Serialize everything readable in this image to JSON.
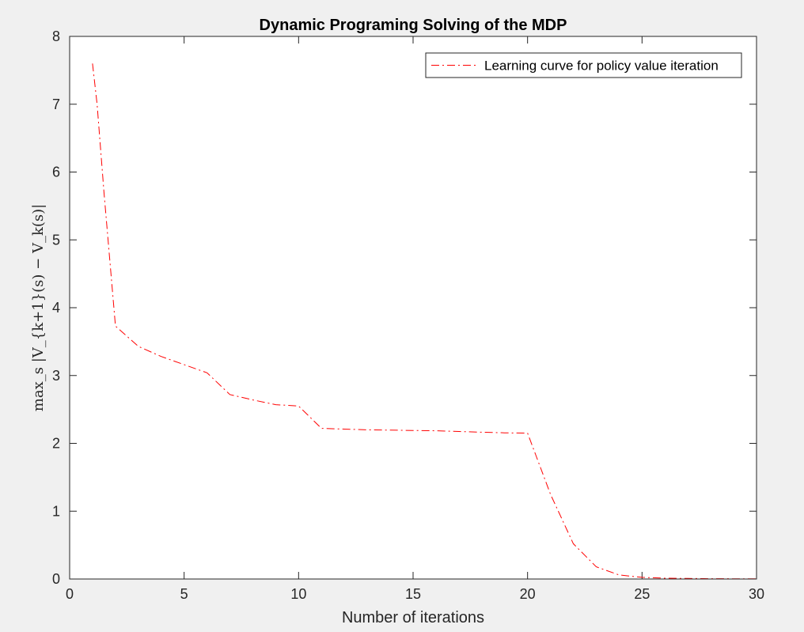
{
  "chart_data": {
    "type": "line",
    "title": "Dynamic Programing Solving of the MDP",
    "xlabel": "Number of iterations",
    "ylabel": "max_s |V_{k+1}(s) − V_k(s)|",
    "xlim": [
      0,
      30
    ],
    "ylim": [
      0,
      8
    ],
    "xticks": [
      0,
      5,
      10,
      15,
      20,
      25,
      30
    ],
    "yticks": [
      0,
      1,
      2,
      3,
      4,
      5,
      6,
      7,
      8
    ],
    "grid": false,
    "legend_position": "top-right",
    "series": [
      {
        "name": "Learning curve for policy value iteration",
        "color": "#ff0000",
        "line_style": "dash-dot",
        "x": [
          1,
          1.2,
          1.5,
          2,
          3,
          4,
          5,
          6,
          7,
          8,
          9,
          10,
          11,
          12,
          13,
          14,
          15,
          16,
          17,
          18,
          19,
          20,
          21,
          22,
          23,
          24,
          25,
          26,
          27,
          28,
          29,
          30
        ],
        "y": [
          7.6,
          7.0,
          5.7,
          3.73,
          3.43,
          3.28,
          3.16,
          3.04,
          2.72,
          2.64,
          2.57,
          2.55,
          2.22,
          2.21,
          2.2,
          2.195,
          2.19,
          2.185,
          2.175,
          2.165,
          2.155,
          2.15,
          1.25,
          0.52,
          0.18,
          0.06,
          0.025,
          0.012,
          0.008,
          0.005,
          0.003,
          0.002
        ]
      }
    ]
  }
}
